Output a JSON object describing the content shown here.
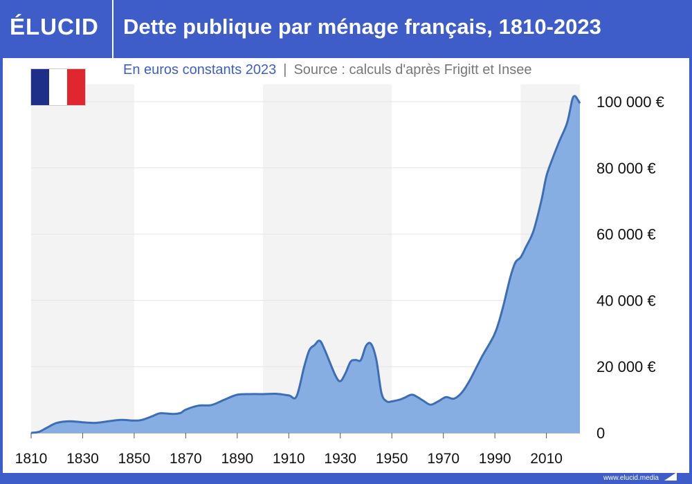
{
  "brand": {
    "logo": "ÉLUCID",
    "website": "www.elucid.media"
  },
  "header": {
    "title": "Dette publique par ménage français, 1810-2023"
  },
  "subtitle": {
    "unit": "En euros constants 2023",
    "separator": "|",
    "source": "Source : calculs d'après Frigitt et Insee"
  },
  "colors": {
    "brand": "#3f5dc8",
    "area_fill": "#86aee3",
    "line": "#3d6db5",
    "band": "#f3f3f3"
  },
  "chart_data": {
    "type": "area",
    "title": "Dette publique par ménage français, 1810-2023",
    "subtitle": "En euros constants 2023",
    "xlabel": "",
    "ylabel": "",
    "xlim": [
      1810,
      2023
    ],
    "ylim": [
      0,
      100000
    ],
    "x_ticks": [
      1810,
      1830,
      1850,
      1870,
      1890,
      1910,
      1930,
      1950,
      1970,
      1990,
      2010
    ],
    "x_tick_labels": [
      "1810",
      "1830",
      "1850",
      "1870",
      "1890",
      "1910",
      "1930",
      "1950",
      "1970",
      "1990",
      "2010"
    ],
    "y_ticks": [
      0,
      20000,
      40000,
      60000,
      80000,
      100000
    ],
    "y_tick_labels": [
      "0",
      "20 000 €",
      "40 000 €",
      "60 000 €",
      "80 000 €",
      "100 000 €"
    ],
    "shaded_bands": [
      [
        1810,
        1850
      ],
      [
        1900,
        1950
      ],
      [
        2000,
        2023
      ]
    ],
    "grid": true,
    "x": [
      1810,
      1813,
      1816,
      1820,
      1825,
      1830,
      1835,
      1840,
      1845,
      1850,
      1853,
      1857,
      1860,
      1865,
      1868,
      1870,
      1875,
      1880,
      1885,
      1890,
      1895,
      1900,
      1905,
      1910,
      1913,
      1916,
      1918,
      1920,
      1922,
      1924,
      1928,
      1930,
      1932,
      1934,
      1936,
      1938,
      1940,
      1942,
      1944,
      1946,
      1948,
      1950,
      1953,
      1955,
      1958,
      1962,
      1965,
      1968,
      1971,
      1974,
      1977,
      1980,
      1985,
      1990,
      1993,
      1996,
      1998,
      2000,
      2002,
      2005,
      2008,
      2010,
      2012,
      2015,
      2018,
      2020,
      2021,
      2022,
      2023
    ],
    "values": [
      0,
      300,
      1500,
      3000,
      3500,
      3200,
      3000,
      3500,
      3900,
      3700,
      3900,
      5000,
      5900,
      5700,
      6000,
      7000,
      8200,
      8400,
      10000,
      11500,
      11700,
      11700,
      11800,
      11300,
      11000,
      20000,
      25000,
      26500,
      27800,
      25000,
      17500,
      15600,
      18000,
      21500,
      22000,
      22000,
      26300,
      26800,
      22000,
      12000,
      9500,
      9500,
      10000,
      10600,
      11500,
      9800,
      8500,
      9500,
      10800,
      10300,
      12000,
      15500,
      23000,
      30000,
      37500,
      47000,
      51500,
      53000,
      56000,
      61000,
      70000,
      77500,
      82000,
      88000,
      93500,
      100500,
      101700,
      100800,
      99500
    ]
  }
}
